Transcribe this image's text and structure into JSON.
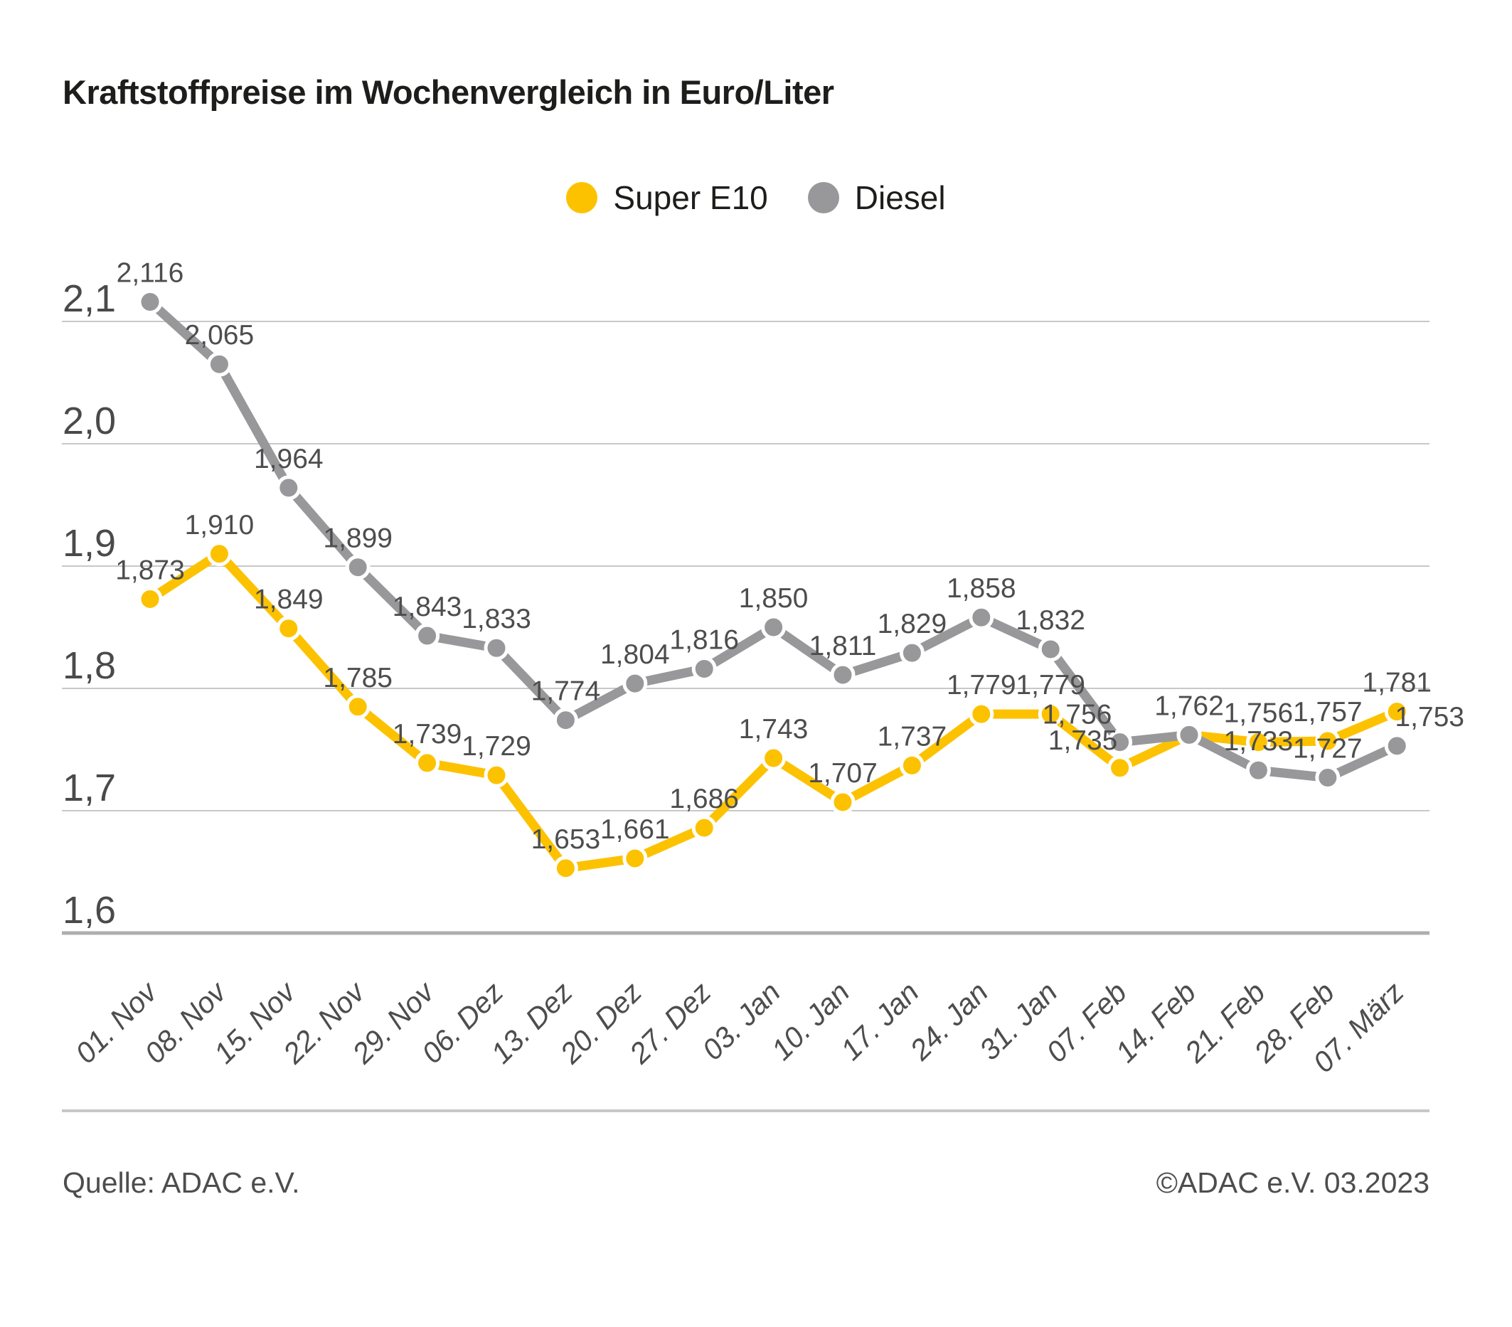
{
  "title": "Kraftstoffpreise im Wochenvergleich in Euro/Liter",
  "legend": {
    "items": [
      {
        "label": "Super E10",
        "color": "#fcc200"
      },
      {
        "label": "Diesel",
        "color": "#98989a"
      }
    ]
  },
  "footer": {
    "source": "Quelle: ADAC e.V.",
    "copyright": "©ADAC e.V. 03.2023"
  },
  "chart_data": {
    "type": "line",
    "title": "Kraftstoffpreise im Wochenvergleich in Euro/Liter",
    "unit": "Euro/Liter",
    "grid": "horizontal",
    "legend_position": "top-center",
    "value_labels": "above-points",
    "x_label_rotation": -45,
    "ylim": [
      1.6,
      2.1
    ],
    "yticks": [
      {
        "value": 2.1,
        "label": "2,1"
      },
      {
        "value": 2.0,
        "label": "2,0"
      },
      {
        "value": 1.9,
        "label": "1,9"
      },
      {
        "value": 1.8,
        "label": "1,8"
      },
      {
        "value": 1.7,
        "label": "1,7"
      },
      {
        "value": 1.6,
        "label": "1,6"
      }
    ],
    "categories": [
      "01. Nov",
      "08. Nov",
      "15. Nov",
      "22. Nov",
      "29. Nov",
      "06. Dez",
      "13. Dez",
      "20. Dez",
      "27. Dez",
      "03. Jan",
      "10. Jan",
      "17. Jan",
      "24. Jan",
      "31. Jan",
      "07. Feb",
      "14. Feb",
      "21. Feb",
      "28. Feb",
      "07. März"
    ],
    "series": [
      {
        "name": "Super E10",
        "color": "#fcc200",
        "values": [
          1.873,
          1.91,
          1.849,
          1.785,
          1.739,
          1.729,
          1.653,
          1.661,
          1.686,
          1.743,
          1.707,
          1.737,
          1.779,
          1.779,
          1.735,
          1.762,
          1.756,
          1.757,
          1.781
        ],
        "labels": [
          "1,873",
          "1,910",
          "1,849",
          "1,785",
          "1,739",
          "1,729",
          "1,653",
          "1,661",
          "1,686",
          "1,743",
          "1,707",
          "1,737",
          "1,779",
          "1,779",
          "1,735",
          "",
          "1,756",
          "1,757",
          "1,781"
        ]
      },
      {
        "name": "Diesel",
        "color": "#98989a",
        "values": [
          2.116,
          2.065,
          1.964,
          1.899,
          1.843,
          1.833,
          1.774,
          1.804,
          1.816,
          1.85,
          1.811,
          1.829,
          1.858,
          1.832,
          1.756,
          1.762,
          1.733,
          1.727,
          1.753
        ],
        "labels": [
          "2,116",
          "2,065",
          "1,964",
          "1,899",
          "1,843",
          "1,833",
          "1,774",
          "1,804",
          "1,816",
          "1,850",
          "1,811",
          "1,829",
          "1,858",
          "1,832",
          "1,756",
          "1,762",
          "1,733",
          "1,727",
          "1,753"
        ]
      }
    ],
    "label_color": "#4d4d4d"
  }
}
